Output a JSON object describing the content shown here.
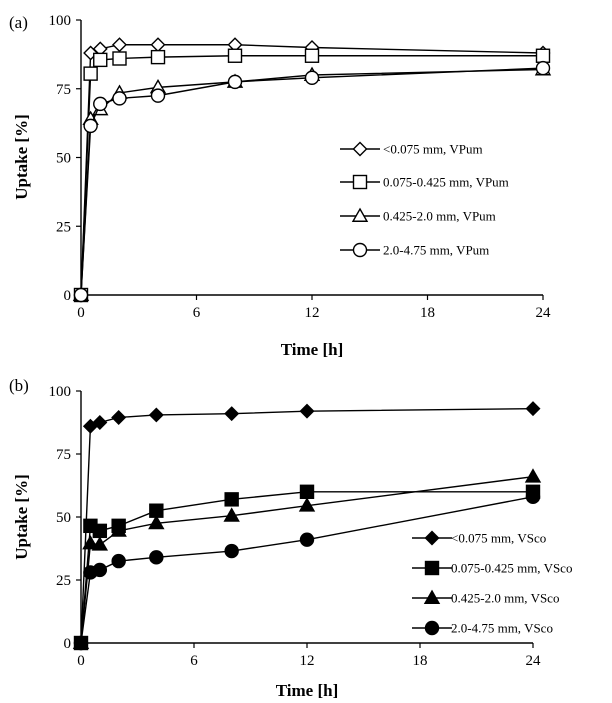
{
  "chart_data": [
    {
      "type": "line",
      "panel_label": "(a)",
      "xlabel": "Time [h]",
      "ylabel": "Uptake [%]",
      "xlim": [
        0,
        24
      ],
      "ylim": [
        0,
        100
      ],
      "xticks": [
        0,
        6,
        12,
        18,
        24
      ],
      "yticks": [
        0,
        25,
        50,
        75,
        100
      ],
      "grid": false,
      "legend_position": "right-center",
      "series": [
        {
          "name": "<0.075 mm, VPum",
          "marker": "diamond",
          "filled": false,
          "x": [
            0,
            0.5,
            1,
            2,
            4,
            8,
            12,
            24
          ],
          "y": [
            0,
            88,
            89.5,
            91,
            91,
            91,
            90,
            88
          ]
        },
        {
          "name": "0.075-0.425 mm, VPum",
          "marker": "square",
          "filled": false,
          "x": [
            0,
            0.5,
            1,
            2,
            4,
            8,
            12,
            24
          ],
          "y": [
            0,
            80.5,
            85.5,
            86,
            86.5,
            87,
            87,
            87
          ]
        },
        {
          "name": "0.425-2.0 mm, VPum",
          "marker": "triangle",
          "filled": false,
          "x": [
            0,
            0.5,
            1,
            2,
            4,
            8,
            12,
            24
          ],
          "y": [
            0,
            64,
            67.5,
            73.5,
            75.5,
            77.5,
            80,
            82
          ]
        },
        {
          "name": "2.0-4.75 mm, VPum",
          "marker": "circle",
          "filled": false,
          "x": [
            0,
            0.5,
            1,
            2,
            4,
            8,
            12,
            24
          ],
          "y": [
            0,
            61.5,
            69.5,
            71.5,
            72.5,
            77.5,
            79,
            82.5
          ]
        }
      ]
    },
    {
      "type": "line",
      "panel_label": "(b)",
      "xlabel": "Time [h]",
      "ylabel": "Uptake [%]",
      "xlim": [
        0,
        24
      ],
      "ylim": [
        0,
        100
      ],
      "xticks": [
        0,
        6,
        12,
        18,
        24
      ],
      "yticks": [
        0,
        25,
        50,
        75,
        100
      ],
      "grid": false,
      "legend_position": "bottom-right",
      "series": [
        {
          "name": "<0.075 mm, VSco",
          "marker": "diamond",
          "filled": true,
          "x": [
            0,
            0.5,
            1,
            2,
            4,
            8,
            12,
            24
          ],
          "y": [
            0,
            86,
            87.5,
            89.5,
            90.5,
            91,
            92,
            93
          ]
        },
        {
          "name": "0.075-0.425 mm, VSco",
          "marker": "square",
          "filled": true,
          "x": [
            0,
            0.5,
            1,
            2,
            4,
            8,
            12,
            24
          ],
          "y": [
            0,
            46.5,
            44.5,
            46.5,
            52.5,
            57,
            60,
            60
          ]
        },
        {
          "name": "0.425-2.0 mm, VSco",
          "marker": "triangle",
          "filled": true,
          "x": [
            0,
            0.5,
            1,
            2,
            4,
            8,
            12,
            24
          ],
          "y": [
            0,
            39.5,
            39,
            44.5,
            47.5,
            50.5,
            54.5,
            66
          ]
        },
        {
          "name": "2.0-4.75 mm, VSco",
          "marker": "circle",
          "filled": true,
          "x": [
            0,
            0.5,
            1,
            2,
            4,
            8,
            12,
            24
          ],
          "y": [
            0,
            28,
            29,
            32.5,
            34,
            36.5,
            41,
            58
          ]
        }
      ]
    }
  ]
}
